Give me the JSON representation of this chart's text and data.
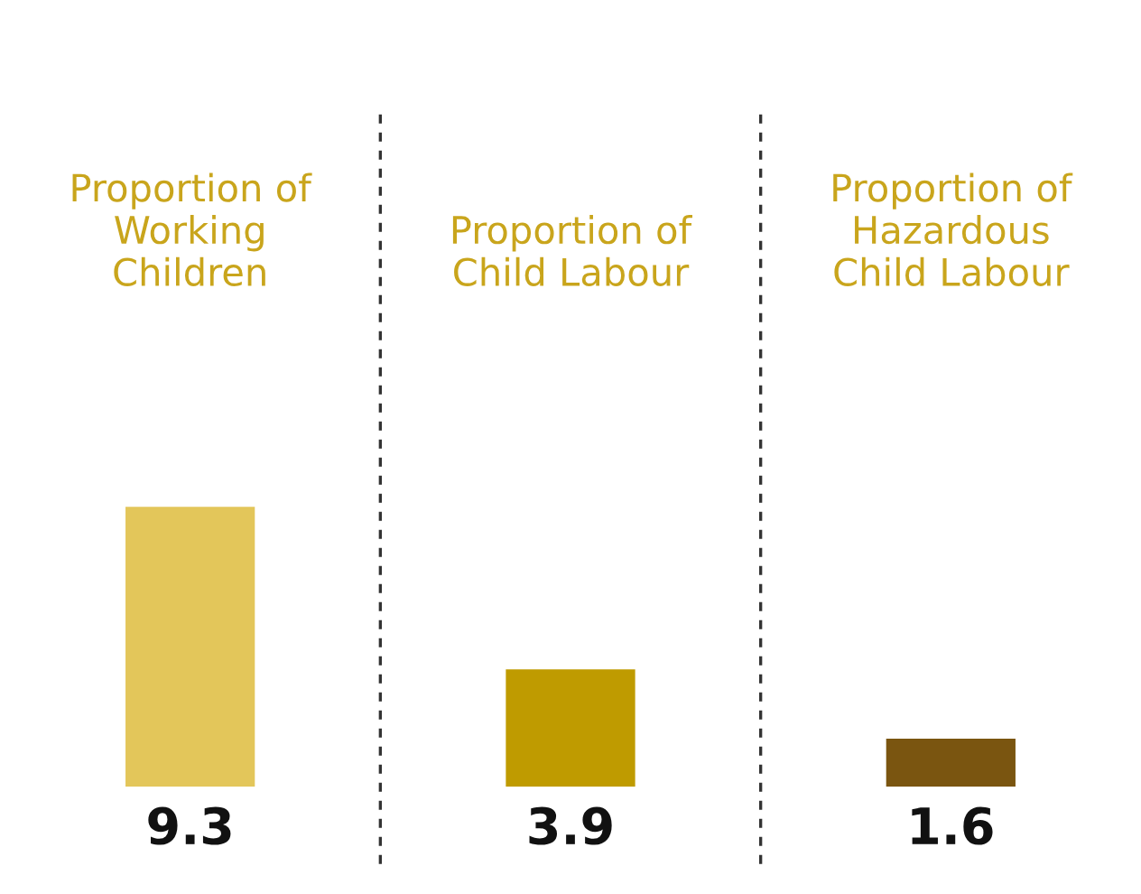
{
  "chart_data": {
    "type": "bar",
    "categories": [
      "Proportion of\nWorking\nChildren",
      "Proportion of\nChild Labour",
      "Proportion of\nHazardous\nChild Labour"
    ],
    "values": [
      9.3,
      3.9,
      1.6
    ],
    "colors": [
      "#e3c65a",
      "#bf9b00",
      "#7a5510"
    ],
    "data_labels": true,
    "grid": false,
    "legend": false
  }
}
